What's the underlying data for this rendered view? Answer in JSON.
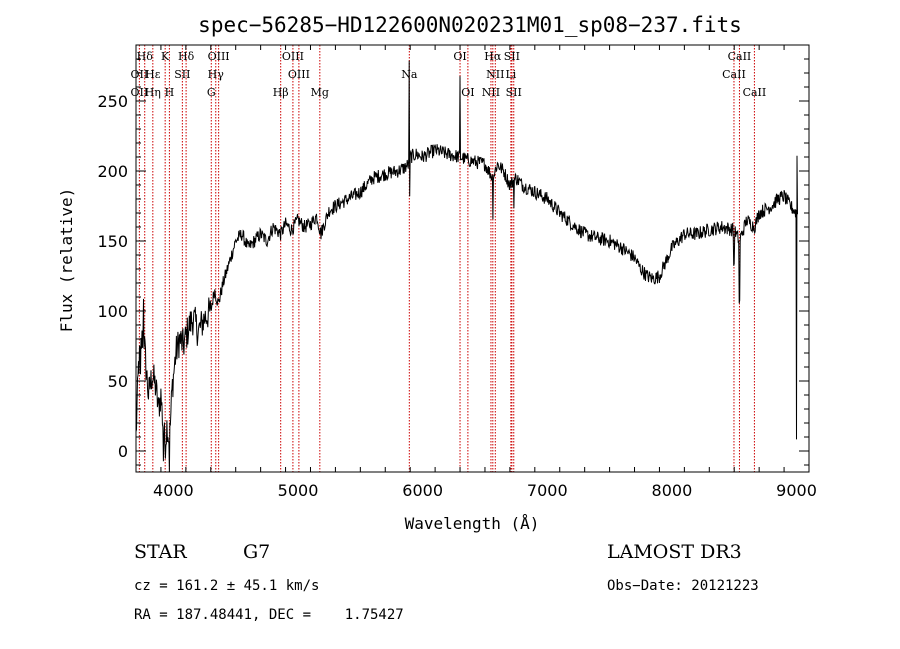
{
  "chart_data": {
    "type": "line",
    "title": "spec−56285−HD122600N020231M01_sp08−237.fits",
    "xlabel": "Wavelength (Å)",
    "ylabel": "Flux (relative)",
    "xlim": [
      3700,
      9100
    ],
    "ylim": [
      -15,
      290
    ],
    "x_ticks": [
      4000,
      5000,
      6000,
      7000,
      8000,
      9000
    ],
    "y_ticks": [
      0,
      50,
      100,
      150,
      200,
      250
    ],
    "grid": false,
    "colors": {
      "spectrum": "#000000",
      "line_marker": "#cc0000"
    },
    "spectrum_knots": [
      [
        3700,
        10
      ],
      [
        3720,
        60
      ],
      [
        3740,
        75
      ],
      [
        3760,
        85
      ],
      [
        3780,
        60
      ],
      [
        3800,
        40
      ],
      [
        3830,
        55
      ],
      [
        3860,
        45
      ],
      [
        3880,
        30
      ],
      [
        3900,
        40
      ],
      [
        3920,
        15
      ],
      [
        3935,
        5
      ],
      [
        3950,
        20
      ],
      [
        3968,
        5
      ],
      [
        3990,
        45
      ],
      [
        4020,
        70
      ],
      [
        4050,
        80
      ],
      [
        4080,
        75
      ],
      [
        4102,
        82
      ],
      [
        4130,
        90
      ],
      [
        4160,
        95
      ],
      [
        4200,
        85
      ],
      [
        4250,
        95
      ],
      [
        4300,
        100
      ],
      [
        4330,
        115
      ],
      [
        4360,
        105
      ],
      [
        4400,
        120
      ],
      [
        4450,
        135
      ],
      [
        4500,
        150
      ],
      [
        4550,
        155
      ],
      [
        4600,
        145
      ],
      [
        4650,
        150
      ],
      [
        4700,
        155
      ],
      [
        4750,
        150
      ],
      [
        4800,
        160
      ],
      [
        4861,
        155
      ],
      [
        4900,
        162
      ],
      [
        4950,
        158
      ],
      [
        5000,
        165
      ],
      [
        5050,
        160
      ],
      [
        5100,
        162
      ],
      [
        5150,
        168
      ],
      [
        5183,
        155
      ],
      [
        5250,
        172
      ],
      [
        5300,
        175
      ],
      [
        5400,
        180
      ],
      [
        5500,
        185
      ],
      [
        5600,
        195
      ],
      [
        5700,
        198
      ],
      [
        5800,
        200
      ],
      [
        5850,
        202
      ],
      [
        5890,
        205
      ],
      [
        5900,
        210
      ],
      [
        5950,
        212
      ],
      [
        6000,
        210
      ],
      [
        6100,
        215
      ],
      [
        6200,
        212
      ],
      [
        6300,
        210
      ],
      [
        6360,
        208
      ],
      [
        6400,
        207
      ],
      [
        6500,
        205
      ],
      [
        6563,
        195
      ],
      [
        6600,
        205
      ],
      [
        6650,
        200
      ],
      [
        6700,
        190
      ],
      [
        6750,
        195
      ],
      [
        6800,
        190
      ],
      [
        6900,
        185
      ],
      [
        7000,
        180
      ],
      [
        7100,
        170
      ],
      [
        7200,
        162
      ],
      [
        7300,
        155
      ],
      [
        7400,
        152
      ],
      [
        7500,
        150
      ],
      [
        7600,
        145
      ],
      [
        7700,
        138
      ],
      [
        7750,
        130
      ],
      [
        7800,
        125
      ],
      [
        7850,
        123
      ],
      [
        7900,
        125
      ],
      [
        7950,
        135
      ],
      [
        8000,
        145
      ],
      [
        8050,
        150
      ],
      [
        8100,
        155
      ],
      [
        8200,
        155
      ],
      [
        8300,
        158
      ],
      [
        8400,
        160
      ],
      [
        8498,
        158
      ],
      [
        8542,
        150
      ],
      [
        8600,
        165
      ],
      [
        8662,
        160
      ],
      [
        8700,
        170
      ],
      [
        8800,
        175
      ],
      [
        8850,
        180
      ],
      [
        8900,
        182
      ],
      [
        8950,
        175
      ],
      [
        9000,
        170
      ]
    ],
    "spectral_lines": [
      {
        "label": "Hδ",
        "wave": 3770,
        "row": 0
      },
      {
        "label": "OII",
        "wave": 3727,
        "row": 1
      },
      {
        "label": "OII",
        "wave": 3727,
        "row": 2
      },
      {
        "label": "Hε",
        "wave": 3835,
        "row": 1
      },
      {
        "label": "Hη",
        "wave": 3835,
        "row": 2
      },
      {
        "label": "K",
        "wave": 3934,
        "row": 0
      },
      {
        "label": "H",
        "wave": 3968,
        "row": 2
      },
      {
        "label": "SII",
        "wave": 4072,
        "row": 1
      },
      {
        "label": "Hδ",
        "wave": 4102,
        "row": 0
      },
      {
        "label": "OIII",
        "wave": 4363,
        "row": 0
      },
      {
        "label": "Hγ",
        "wave": 4340,
        "row": 1
      },
      {
        "label": "G",
        "wave": 4304,
        "row": 2
      },
      {
        "label": "Hβ",
        "wave": 4861,
        "row": 2
      },
      {
        "label": "OIII",
        "wave": 4959,
        "row": 0
      },
      {
        "label": "OIII",
        "wave": 5007,
        "row": 1
      },
      {
        "label": "Mg",
        "wave": 5175,
        "row": 2
      },
      {
        "label": "Na",
        "wave": 5893,
        "row": 1
      },
      {
        "label": "OI",
        "wave": 6300,
        "row": 0
      },
      {
        "label": "OI",
        "wave": 6363,
        "row": 2
      },
      {
        "label": "Hα",
        "wave": 6563,
        "row": 0
      },
      {
        "label": "NII",
        "wave": 6583,
        "row": 1
      },
      {
        "label": "NII",
        "wave": 6548,
        "row": 2
      },
      {
        "label": "SII",
        "wave": 6716,
        "row": 0
      },
      {
        "label": "Li",
        "wave": 6708,
        "row": 1
      },
      {
        "label": "SII",
        "wave": 6731,
        "row": 2
      },
      {
        "label": "CaII",
        "wave": 8542,
        "row": 0
      },
      {
        "label": "CaII",
        "wave": 8498,
        "row": 1
      },
      {
        "label": "CaII",
        "wave": 8662,
        "row": 2
      }
    ]
  },
  "info": {
    "class": "STAR",
    "subclass": "G7",
    "cz": "cz = 161.2 ± 45.1 km/s",
    "radec": "RA = 187.48441, DEC =    1.75427",
    "survey": "LAMOST DR3",
    "obs_date": "Obs−Date: 20121223"
  }
}
